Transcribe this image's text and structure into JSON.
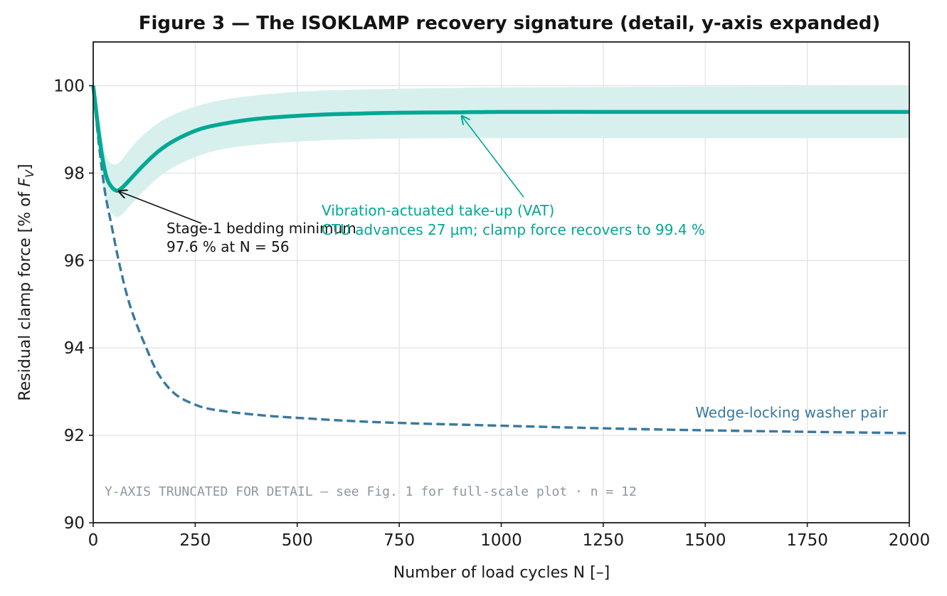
{
  "chart_data": {
    "type": "line",
    "title": "Figure 3 — The ISOKLAMP recovery signature (detail, y-axis expanded)",
    "xlabel": "Number of load cycles  N  [–]",
    "ylabel_prefix": "Residual clamp force  [% of ",
    "ylabel_symbol": "F",
    "ylabel_subscript": "V",
    "ylabel_suffix": "]",
    "xlim": [
      0,
      2000
    ],
    "ylim": [
      90,
      101
    ],
    "xticks": [
      0,
      250,
      500,
      750,
      1000,
      1250,
      1500,
      1750,
      2000
    ],
    "yticks": [
      90,
      92,
      94,
      96,
      98,
      100
    ],
    "grid": true,
    "colors": {
      "teal": "#00a894",
      "band": "#d8f0ed",
      "blue": "#3a78a0",
      "black": "#141414",
      "note": "#8d97a3"
    },
    "series": [
      {
        "name": "ISOKLAMP",
        "style": "solid",
        "x": [
          0,
          5,
          10,
          20,
          30,
          40,
          56,
          70,
          90,
          120,
          160,
          200,
          260,
          320,
          400,
          500,
          600,
          750,
          900,
          1000,
          1250,
          1500,
          1750,
          2000
        ],
        "y": [
          100.0,
          99.6,
          99.2,
          98.5,
          98.0,
          97.75,
          97.6,
          97.66,
          97.85,
          98.15,
          98.5,
          98.75,
          99.0,
          99.13,
          99.24,
          99.31,
          99.35,
          99.38,
          99.39,
          99.4,
          99.4,
          99.4,
          99.4,
          99.4
        ],
        "band_lower": [
          100.0,
          99.3,
          98.7,
          97.9,
          97.4,
          97.15,
          97.0,
          97.05,
          97.25,
          97.55,
          97.9,
          98.15,
          98.4,
          98.55,
          98.65,
          98.72,
          98.76,
          98.79,
          98.8,
          98.8,
          98.8,
          98.8,
          98.8,
          98.8
        ],
        "band_upper": [
          100.0,
          99.7,
          99.4,
          98.85,
          98.45,
          98.25,
          98.2,
          98.3,
          98.55,
          98.85,
          99.15,
          99.35,
          99.55,
          99.68,
          99.78,
          99.86,
          99.9,
          99.93,
          99.95,
          99.96,
          99.97,
          99.98,
          99.99,
          100.0
        ]
      },
      {
        "name": "Wedge-locking washer pair",
        "style": "dashed",
        "x": [
          0,
          10,
          20,
          30,
          45,
          60,
          80,
          100,
          130,
          160,
          200,
          250,
          300,
          400,
          500,
          700,
          1000,
          1300,
          1600,
          2000
        ],
        "y": [
          100.0,
          99.0,
          98.2,
          97.5,
          96.8,
          96.1,
          95.3,
          94.7,
          94.0,
          93.4,
          92.95,
          92.7,
          92.58,
          92.47,
          92.4,
          92.3,
          92.22,
          92.15,
          92.1,
          92.05
        ]
      }
    ],
    "annotations": {
      "minimum_line1": "Stage-1 bedding minimum",
      "minimum_line2": "97.6 % at N = 56",
      "minimum_point": [
        56,
        97.6
      ],
      "minimum_text_at": [
        265,
        96.85
      ],
      "vat_line1": "Vibration-actuated take-up (VAT)",
      "vat_line2": "CTU advances 27 µm; clamp force recovers to 99.4 %",
      "vat_point": [
        900,
        99.4
      ],
      "vat_text_at": [
        1055,
        97.45
      ],
      "washer_label": "Wedge-locking washer pair",
      "note": "Y-AXIS TRUNCATED FOR DETAIL — see Fig. 1 for full-scale plot · n = 12"
    }
  }
}
